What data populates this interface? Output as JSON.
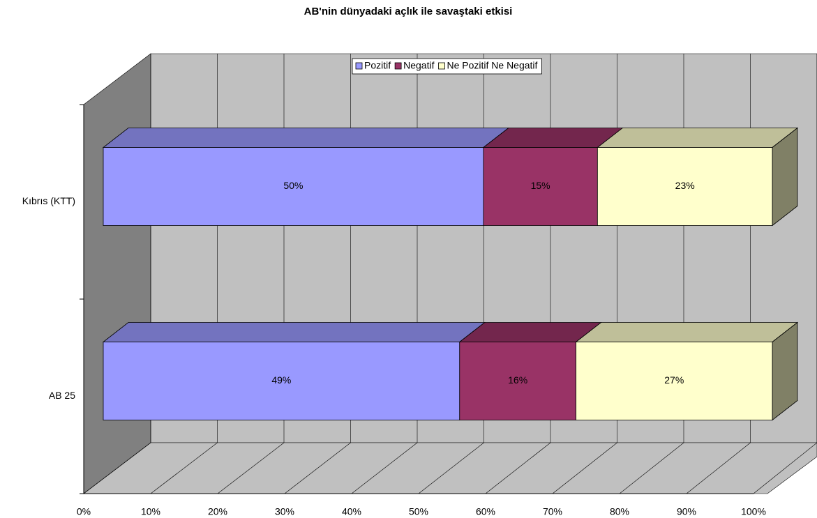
{
  "chart_data": {
    "type": "bar",
    "orientation": "horizontal",
    "stacking": "percent",
    "title": "AB'nin dünyadaki açlık ile savaştaki etkisi",
    "categories": [
      "Kıbrıs (KTT)",
      "AB 25"
    ],
    "series": [
      {
        "name": "Pozitif",
        "color": "#9999ff",
        "values": [
          50,
          49
        ],
        "value_labels": [
          "50%",
          "49%"
        ]
      },
      {
        "name": "Negatif",
        "color": "#993366",
        "values": [
          15,
          16
        ],
        "value_labels": [
          "15%",
          "16%"
        ]
      },
      {
        "name": "Ne Pozitif Ne Negatif",
        "color": "#ffffcc",
        "values": [
          23,
          27
        ],
        "value_labels": [
          "23%",
          "27%"
        ]
      }
    ],
    "xlim": [
      0,
      100
    ],
    "xticks": [
      {
        "value": 0,
        "label": "0%"
      },
      {
        "value": 10,
        "label": "10%"
      },
      {
        "value": 20,
        "label": "20%"
      },
      {
        "value": 30,
        "label": "30%"
      },
      {
        "value": 40,
        "label": "40%"
      },
      {
        "value": 50,
        "label": "50%"
      },
      {
        "value": 60,
        "label": "60%"
      },
      {
        "value": 70,
        "label": "70%"
      },
      {
        "value": 80,
        "label": "80%"
      },
      {
        "value": 90,
        "label": "90%"
      },
      {
        "value": 100,
        "label": "100%"
      }
    ],
    "grid": true,
    "legend": "top"
  }
}
